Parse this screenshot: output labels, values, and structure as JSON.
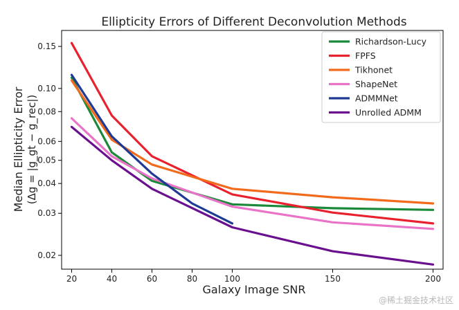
{
  "chart_data": {
    "type": "line",
    "title": "Ellipticity Errors of Different Deconvolution Methods",
    "xlabel": "Galaxy Image SNR",
    "ylabel_line1": "Median Ellipticity Error",
    "ylabel_line2": "(Δg = |g_gt − g_rec|)",
    "yscale": "log",
    "xlim": [
      15,
      205
    ],
    "ylim": [
      0.0175,
      0.175
    ],
    "x_ticks": [
      20,
      40,
      60,
      80,
      100,
      150,
      200
    ],
    "x_tick_labels": [
      "20",
      "40",
      "60",
      "80",
      "100",
      "150",
      "200"
    ],
    "y_ticks": [
      0.02,
      0.03,
      0.04,
      0.05,
      0.06,
      0.08,
      0.1,
      0.15
    ],
    "y_tick_labels": [
      "0.02",
      "0.03",
      "0.04",
      "0.05",
      "0.06",
      "0.08",
      "0.10",
      "0.15"
    ],
    "legend_position": "top-right",
    "series": [
      {
        "name": "Richardson-Lucy",
        "color": "#1a8a3a",
        "x": [
          20,
          40,
          60,
          100,
          150,
          200
        ],
        "values": [
          0.111,
          0.054,
          0.041,
          0.0327,
          0.0315,
          0.031
        ]
      },
      {
        "name": "FPFS",
        "color": "#e8212e",
        "x": [
          20,
          40,
          60,
          100,
          150,
          200
        ],
        "values": [
          0.155,
          0.077,
          0.052,
          0.036,
          0.0302,
          0.0272
        ]
      },
      {
        "name": "Tikhonet",
        "color": "#f26b1d",
        "x": [
          20,
          40,
          60,
          100,
          150,
          200
        ],
        "values": [
          0.108,
          0.061,
          0.048,
          0.038,
          0.035,
          0.033
        ]
      },
      {
        "name": "ShapeNet",
        "color": "#e973c7",
        "x": [
          20,
          40,
          60,
          100,
          150,
          200
        ],
        "values": [
          0.075,
          0.052,
          0.042,
          0.032,
          0.0275,
          0.0258
        ]
      },
      {
        "name": "ADMMNet",
        "color": "#1f3a93",
        "x": [
          20,
          40,
          60,
          80,
          100
        ],
        "values": [
          0.114,
          0.063,
          0.044,
          0.033,
          0.0272
        ]
      },
      {
        "name": "Unrolled ADMM",
        "color": "#6a0f8e",
        "x": [
          20,
          40,
          60,
          100,
          150,
          200
        ],
        "values": [
          0.069,
          0.05,
          0.038,
          0.0262,
          0.0208,
          0.0183
        ]
      }
    ]
  },
  "watermark": "@稀土掘金技术社区"
}
